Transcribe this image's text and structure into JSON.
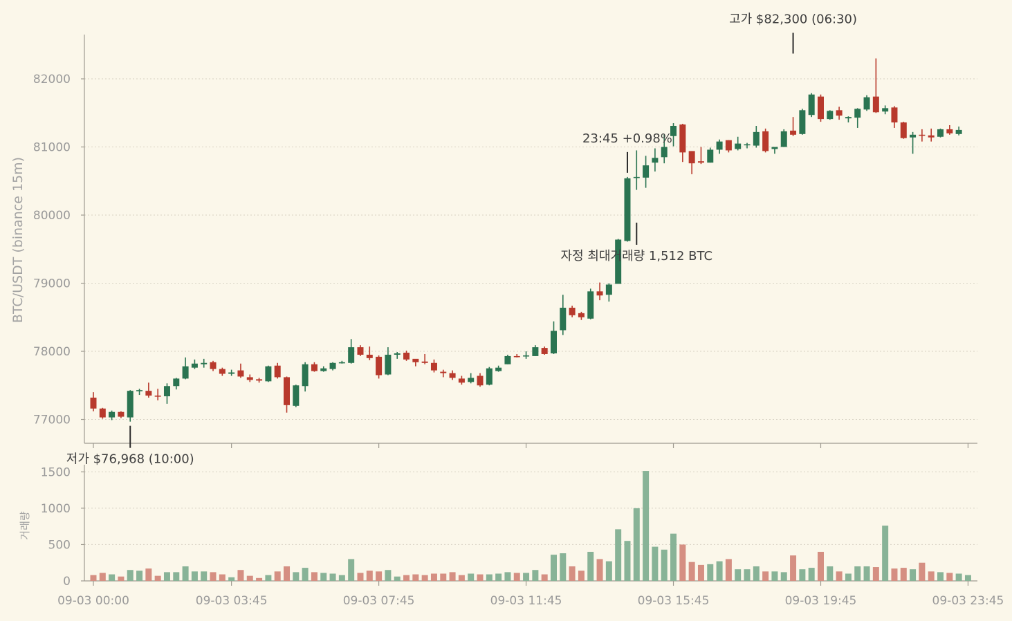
{
  "colors": {
    "background": "#fbf7ea",
    "up": "#2a7451",
    "down": "#b8392c",
    "vol_up": "#88b397",
    "vol_down": "#d58f82"
  },
  "chart_data": [
    {
      "type": "candlestick",
      "ylabel": "BTC/USDT (binance 15m)",
      "ylim": [
        76650,
        82650
      ],
      "yticks": [
        77000,
        78000,
        79000,
        80000,
        81000,
        82000
      ],
      "grid": true,
      "annotations": [
        {
          "text": "고가 $82,300 (06:30)",
          "index": 76,
          "price": 82300,
          "placement": "above"
        },
        {
          "text": "23:45 +0.98%",
          "index": 58,
          "price": 80550,
          "placement": "above"
        },
        {
          "text": "자정 최대거래량 1,512 BTC",
          "index": 59,
          "price": 79950,
          "placement": "below"
        },
        {
          "text": "저가 $76,968 (10:00)",
          "index": 4,
          "price": 76968,
          "placement": "below"
        }
      ],
      "candles": [
        [
          77320,
          77160,
          77400,
          77120
        ],
        [
          77160,
          77030,
          77170,
          77010
        ],
        [
          77030,
          77110,
          77130,
          76990
        ],
        [
          77110,
          77040,
          77120,
          77020
        ],
        [
          77030,
          77420,
          77430,
          76968
        ],
        [
          77420,
          77430,
          77450,
          77360
        ],
        [
          77420,
          77350,
          77540,
          77320
        ],
        [
          77350,
          77340,
          77450,
          77280
        ],
        [
          77340,
          77490,
          77530,
          77230
        ],
        [
          77490,
          77600,
          77610,
          77440
        ],
        [
          77600,
          77780,
          77910,
          77590
        ],
        [
          77760,
          77820,
          77880,
          77740
        ],
        [
          77810,
          77830,
          77890,
          77760
        ],
        [
          77840,
          77740,
          77860,
          77710
        ],
        [
          77740,
          77670,
          77760,
          77640
        ],
        [
          77670,
          77690,
          77730,
          77640
        ],
        [
          77720,
          77630,
          77820,
          77610
        ],
        [
          77620,
          77580,
          77660,
          77550
        ],
        [
          77590,
          77570,
          77610,
          77540
        ],
        [
          77560,
          77780,
          77790,
          77550
        ],
        [
          77790,
          77620,
          77830,
          77600
        ],
        [
          77620,
          77210,
          77630,
          77100
        ],
        [
          77200,
          77500,
          77510,
          77180
        ],
        [
          77490,
          77810,
          77840,
          77410
        ],
        [
          77810,
          77710,
          77840,
          77700
        ],
        [
          77710,
          77750,
          77780,
          77700
        ],
        [
          77740,
          77830,
          77840,
          77720
        ],
        [
          77830,
          77840,
          77860,
          77820
        ],
        [
          77830,
          78060,
          78180,
          77820
        ],
        [
          78060,
          77950,
          78090,
          77930
        ],
        [
          77950,
          77900,
          78070,
          77870
        ],
        [
          77920,
          77650,
          77940,
          77600
        ],
        [
          77660,
          77950,
          78060,
          77650
        ],
        [
          77950,
          77970,
          77990,
          77890
        ],
        [
          77980,
          77880,
          78010,
          77860
        ],
        [
          77890,
          77840,
          77880,
          77780
        ],
        [
          77850,
          77830,
          77960,
          77810
        ],
        [
          77830,
          77720,
          77880,
          77690
        ],
        [
          77700,
          77680,
          77730,
          77620
        ],
        [
          77680,
          77610,
          77720,
          77580
        ],
        [
          77600,
          77540,
          77640,
          77510
        ],
        [
          77550,
          77610,
          77680,
          77530
        ],
        [
          77640,
          77500,
          77680,
          77480
        ],
        [
          77510,
          77750,
          77770,
          77500
        ],
        [
          77710,
          77760,
          77790,
          77700
        ],
        [
          77810,
          77930,
          77950,
          77810
        ],
        [
          77930,
          77920,
          77960,
          77910
        ],
        [
          77930,
          77940,
          78000,
          77890
        ],
        [
          77930,
          78060,
          78090,
          77930
        ],
        [
          78050,
          77960,
          78070,
          77950
        ],
        [
          77970,
          78300,
          78440,
          77960
        ],
        [
          78310,
          78640,
          78830,
          78240
        ],
        [
          78640,
          78530,
          78670,
          78500
        ],
        [
          78560,
          78500,
          78580,
          78460
        ],
        [
          78480,
          78880,
          78920,
          78470
        ],
        [
          78880,
          78820,
          79010,
          78750
        ],
        [
          78830,
          78980,
          79000,
          78730
        ],
        [
          78990,
          79640,
          79650,
          78990
        ],
        [
          79620,
          80540,
          80560,
          79610
        ],
        [
          80550,
          80560,
          80950,
          80370
        ],
        [
          80550,
          80730,
          80870,
          80400
        ],
        [
          80770,
          80840,
          80980,
          80640
        ],
        [
          80850,
          81000,
          81190,
          80760
        ],
        [
          81160,
          81310,
          81350,
          81010
        ],
        [
          81330,
          80920,
          81340,
          80780
        ],
        [
          80940,
          80760,
          80940,
          80600
        ],
        [
          80790,
          80770,
          81000,
          80750
        ],
        [
          80770,
          80960,
          80990,
          80770
        ],
        [
          80960,
          81080,
          81110,
          80900
        ],
        [
          81100,
          80950,
          81100,
          80920
        ],
        [
          80970,
          81050,
          81150,
          80950
        ],
        [
          81040,
          81040,
          81060,
          80980
        ],
        [
          81020,
          81220,
          81310,
          80990
        ],
        [
          81230,
          80940,
          81270,
          80920
        ],
        [
          80970,
          81000,
          81000,
          80900
        ],
        [
          81000,
          81230,
          81260,
          81000
        ],
        [
          81240,
          81180,
          81440,
          81160
        ],
        [
          81190,
          81540,
          81560,
          81180
        ],
        [
          81470,
          81770,
          81790,
          81440
        ],
        [
          81740,
          81410,
          81770,
          81370
        ],
        [
          81410,
          81530,
          81540,
          81400
        ],
        [
          81540,
          81460,
          81590,
          81400
        ],
        [
          81420,
          81440,
          81450,
          81360
        ],
        [
          81430,
          81560,
          81570,
          81280
        ],
        [
          81550,
          81730,
          81760,
          81530
        ],
        [
          81740,
          81510,
          82300,
          81500
        ],
        [
          81520,
          81570,
          81610,
          81480
        ],
        [
          81580,
          81360,
          81600,
          81280
        ],
        [
          81360,
          81130,
          81370,
          81120
        ],
        [
          81140,
          81180,
          81220,
          80900
        ],
        [
          81180,
          81170,
          81260,
          81080
        ],
        [
          81170,
          81140,
          81270,
          81080
        ],
        [
          81150,
          81260,
          81270,
          81140
        ],
        [
          81260,
          81200,
          81320,
          81180
        ],
        [
          81190,
          81250,
          81300,
          81170
        ]
      ],
      "x_tick_labels": [
        "09-03 00:00",
        "09-03 03:45",
        "09-03 07:45",
        "09-03 11:45",
        "09-03 15:45",
        "09-03 19:45",
        "09-03 23:45"
      ],
      "x_tick_indices": [
        0,
        15,
        31,
        47,
        63,
        79,
        95
      ]
    },
    {
      "type": "bar",
      "ylabel": "거래량",
      "ylim": [
        0,
        1560
      ],
      "yticks": [
        0,
        500,
        1000,
        1500
      ],
      "grid": true,
      "volumes": [
        80,
        110,
        90,
        60,
        150,
        140,
        170,
        70,
        120,
        120,
        200,
        130,
        130,
        120,
        90,
        50,
        150,
        70,
        40,
        80,
        130,
        200,
        120,
        180,
        120,
        110,
        100,
        80,
        300,
        110,
        140,
        130,
        150,
        60,
        80,
        90,
        80,
        100,
        100,
        120,
        80,
        100,
        90,
        90,
        100,
        120,
        110,
        110,
        150,
        90,
        360,
        380,
        200,
        140,
        400,
        300,
        270,
        710,
        550,
        1000,
        1512,
        470,
        430,
        650,
        500,
        260,
        220,
        230,
        270,
        300,
        160,
        160,
        200,
        130,
        130,
        120,
        350,
        160,
        180,
        400,
        200,
        130,
        100,
        200,
        200,
        190,
        760,
        170,
        180,
        160,
        250,
        130,
        120,
        110,
        100,
        80
      ]
    }
  ]
}
